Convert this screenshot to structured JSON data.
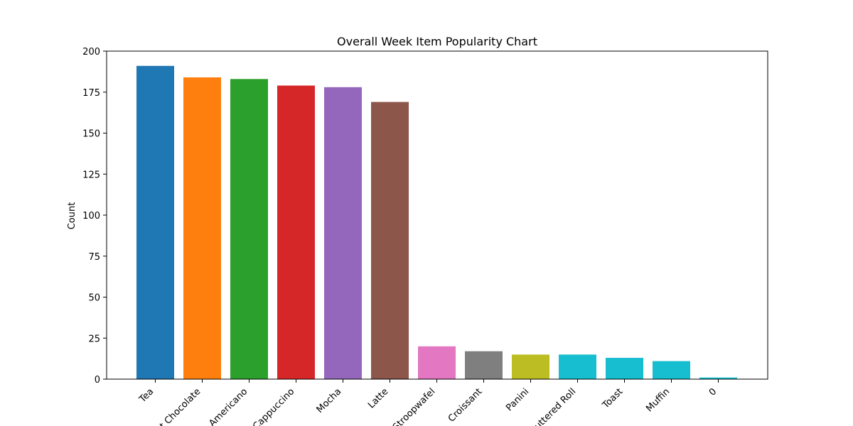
{
  "chart_data": {
    "type": "bar",
    "title": "Overall Week Item Popularity Chart",
    "xlabel": "",
    "ylabel": "Count",
    "ylim": [
      0,
      200
    ],
    "yticks": [
      0,
      25,
      50,
      75,
      100,
      125,
      150,
      175,
      200
    ],
    "grid": false,
    "categories": [
      "Tea",
      "Hot Chocolate",
      "Americano",
      "Cappuccino",
      "Mocha",
      "Latte",
      "Stroopwafel",
      "Croissant",
      "Panini",
      "Buttered Roll",
      "Toast",
      "Muffin",
      "0"
    ],
    "values": [
      191,
      184,
      183,
      179,
      178,
      169,
      20,
      17,
      15,
      15,
      13,
      11,
      1
    ],
    "colors": [
      "#1f77b4",
      "#ff7f0e",
      "#2ca02c",
      "#d62728",
      "#9467bd",
      "#8c564b",
      "#e377c2",
      "#7f7f7f",
      "#bcbd22",
      "#17becf",
      "#17becf",
      "#17becf",
      "#17becf"
    ]
  }
}
